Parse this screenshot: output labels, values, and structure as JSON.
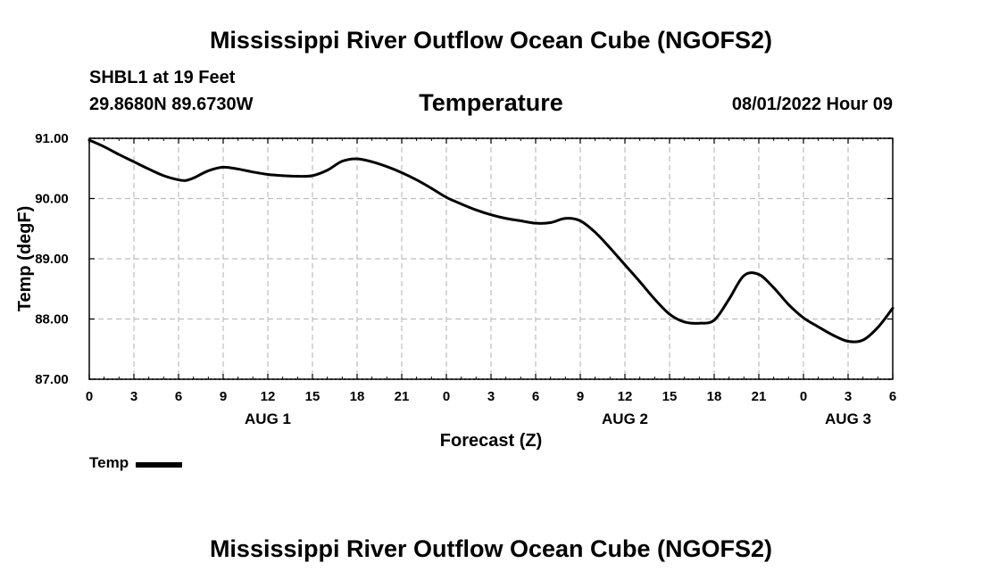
{
  "header": {
    "title": "Mississippi River Outflow Ocean Cube (NGOFS2)",
    "station": "SHBL1 at 19 Feet",
    "coords": "29.8680N  89.6730W",
    "variable": "Temperature",
    "datetime": "08/01/2022 Hour 09"
  },
  "legend": {
    "label": "Temp",
    "color": "#000000"
  },
  "footer": {
    "title": "Mississippi River Outflow Ocean Cube (NGOFS2)"
  },
  "chart_data": {
    "type": "line",
    "title": "Temperature",
    "xlabel": "Forecast (Z)",
    "ylabel": "Temp (degF)",
    "xlim": [
      0,
      54
    ],
    "ylim": [
      87.0,
      91.0
    ],
    "x_ticks": [
      0,
      3,
      6,
      9,
      12,
      15,
      18,
      21,
      24,
      27,
      30,
      33,
      36,
      39,
      42,
      45,
      48,
      51,
      54
    ],
    "x_tick_labels": [
      "0",
      "3",
      "6",
      "9",
      "12",
      "15",
      "18",
      "21",
      "0",
      "3",
      "6",
      "9",
      "12",
      "15",
      "18",
      "21",
      "0",
      "3",
      "6"
    ],
    "y_ticks": [
      87.0,
      88.0,
      89.0,
      90.0,
      91.0
    ],
    "y_tick_labels": [
      "87.00",
      "88.00",
      "89.00",
      "90.00",
      "91.00"
    ],
    "day_labels": [
      {
        "x": 12,
        "label": "AUG 1"
      },
      {
        "x": 36,
        "label": "AUG 2"
      },
      {
        "x": 51,
        "label": "AUG 3"
      }
    ],
    "grid": true,
    "series": [
      {
        "name": "Temp",
        "color": "#000000",
        "x": [
          0,
          1,
          2,
          3,
          4,
          5,
          6,
          6.5,
          7,
          8,
          9,
          10,
          11,
          12,
          13,
          14,
          15,
          16,
          17,
          18,
          19,
          20,
          21,
          22,
          23,
          24,
          25,
          26,
          27,
          28,
          29,
          30,
          31,
          32,
          33,
          34,
          35,
          36,
          37,
          38,
          39,
          40,
          41,
          42,
          43,
          44,
          45,
          46,
          47,
          48,
          49,
          50,
          51,
          52,
          53,
          54
        ],
        "values": [
          90.97,
          90.86,
          90.73,
          90.61,
          90.49,
          90.38,
          90.31,
          90.3,
          90.34,
          90.46,
          90.52,
          90.49,
          90.44,
          90.4,
          90.38,
          90.37,
          90.38,
          90.47,
          90.62,
          90.66,
          90.61,
          90.53,
          90.43,
          90.31,
          90.17,
          90.02,
          89.91,
          89.81,
          89.73,
          89.67,
          89.63,
          89.59,
          89.6,
          89.67,
          89.63,
          89.44,
          89.18,
          88.9,
          88.62,
          88.33,
          88.08,
          87.95,
          87.93,
          87.98,
          88.33,
          88.72,
          88.74,
          88.52,
          88.24,
          88.02,
          87.87,
          87.73,
          87.63,
          87.65,
          87.86,
          88.18
        ]
      }
    ]
  }
}
